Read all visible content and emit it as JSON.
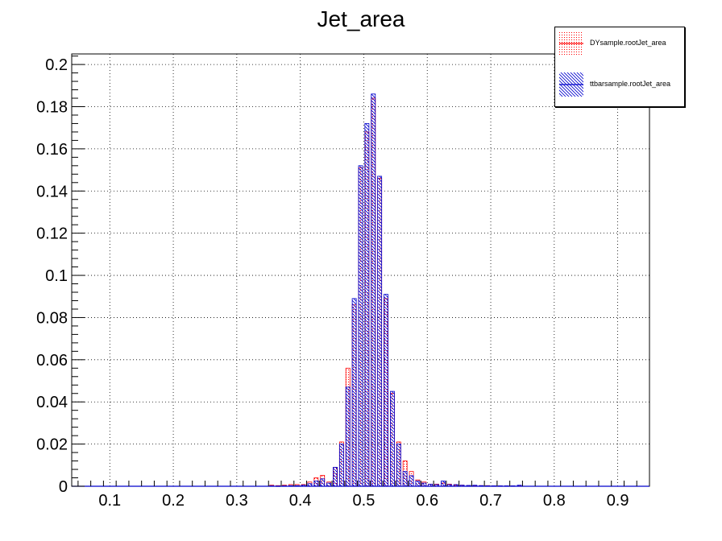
{
  "title": "Jet_area",
  "legend": {
    "entries": [
      {
        "label": "DYsample.rootJet_area",
        "color": "#ff0000",
        "pattern": "dots"
      },
      {
        "label": "ttbarsample.rootJet_area",
        "color": "#0000cc",
        "pattern": "hatch"
      }
    ]
  },
  "chart_data": {
    "type": "bar",
    "title": "Jet_area",
    "xlabel": "",
    "ylabel": "",
    "xlim": [
      0.04,
      0.95
    ],
    "ylim": [
      0,
      0.205
    ],
    "grid": true,
    "legend_position": "top-right",
    "x_ticks": [
      "0.1",
      "0.2",
      "0.3",
      "0.4",
      "0.5",
      "0.6",
      "0.7",
      "0.8",
      "0.9"
    ],
    "y_ticks": [
      "0",
      "0.02",
      "0.04",
      "0.06",
      "0.08",
      "0.1",
      "0.12",
      "0.14",
      "0.16",
      "0.18",
      "0.2"
    ],
    "bin_width": 0.01,
    "series": [
      {
        "name": "DYsample.rootJet_area",
        "color": "#ff0000",
        "style": "dotted-fill",
        "bins": [
          [
            0.355,
            0.0005
          ],
          [
            0.365,
            0.0003
          ],
          [
            0.375,
            0.0005
          ],
          [
            0.385,
            0.0008
          ],
          [
            0.395,
            0.0008
          ],
          [
            0.405,
            0.0008
          ],
          [
            0.415,
            0.002
          ],
          [
            0.425,
            0.004
          ],
          [
            0.435,
            0.0052
          ],
          [
            0.445,
            0.002
          ],
          [
            0.455,
            0.009
          ],
          [
            0.465,
            0.021
          ],
          [
            0.475,
            0.056
          ],
          [
            0.485,
            0.086
          ],
          [
            0.495,
            0.151
          ],
          [
            0.505,
            0.168
          ],
          [
            0.515,
            0.184
          ],
          [
            0.525,
            0.146
          ],
          [
            0.535,
            0.089
          ],
          [
            0.545,
            0.044
          ],
          [
            0.555,
            0.021
          ],
          [
            0.565,
            0.012
          ],
          [
            0.575,
            0.007
          ],
          [
            0.585,
            0.003
          ],
          [
            0.595,
            0.002
          ],
          [
            0.605,
            0.001
          ],
          [
            0.615,
            0.001
          ],
          [
            0.625,
            0.0015
          ],
          [
            0.635,
            0.001
          ],
          [
            0.645,
            0.0005
          ],
          [
            0.655,
            0.0005
          ],
          [
            0.665,
            0.0003
          ],
          [
            0.675,
            0.0003
          ],
          [
            0.685,
            0.0003
          ],
          [
            0.695,
            0.0003
          ],
          [
            0.705,
            0.0002
          ],
          [
            0.715,
            0.0002
          ],
          [
            0.725,
            0.0002
          ],
          [
            0.735,
            0.0002
          ],
          [
            0.745,
            0.0002
          ]
        ]
      },
      {
        "name": "ttbarsample.rootJet_area",
        "color": "#0000cc",
        "style": "hatched-fill",
        "bins": [
          [
            0.355,
            0.0002
          ],
          [
            0.365,
            0.0001
          ],
          [
            0.375,
            0.0002
          ],
          [
            0.385,
            0.0003
          ],
          [
            0.395,
            0.0003
          ],
          [
            0.405,
            0.0005
          ],
          [
            0.415,
            0.0012
          ],
          [
            0.425,
            0.0025
          ],
          [
            0.435,
            0.0035
          ],
          [
            0.445,
            0.0015
          ],
          [
            0.455,
            0.009
          ],
          [
            0.465,
            0.02
          ],
          [
            0.475,
            0.047
          ],
          [
            0.485,
            0.089
          ],
          [
            0.495,
            0.152
          ],
          [
            0.505,
            0.172
          ],
          [
            0.515,
            0.186
          ],
          [
            0.525,
            0.147
          ],
          [
            0.535,
            0.091
          ],
          [
            0.545,
            0.045
          ],
          [
            0.555,
            0.02
          ],
          [
            0.565,
            0.007
          ],
          [
            0.575,
            0.005
          ],
          [
            0.585,
            0.0025
          ],
          [
            0.595,
            0.0015
          ],
          [
            0.605,
            0.001
          ],
          [
            0.615,
            0.0008
          ],
          [
            0.625,
            0.0025
          ],
          [
            0.635,
            0.0008
          ],
          [
            0.645,
            0.0008
          ],
          [
            0.655,
            0.0005
          ],
          [
            0.665,
            0.0004
          ],
          [
            0.675,
            0.0005
          ],
          [
            0.685,
            0.0003
          ],
          [
            0.695,
            0.0002
          ],
          [
            0.705,
            0.0002
          ],
          [
            0.715,
            0.0002
          ],
          [
            0.725,
            0.0002
          ],
          [
            0.735,
            0.0002
          ],
          [
            0.745,
            0.0005
          ]
        ]
      }
    ]
  }
}
